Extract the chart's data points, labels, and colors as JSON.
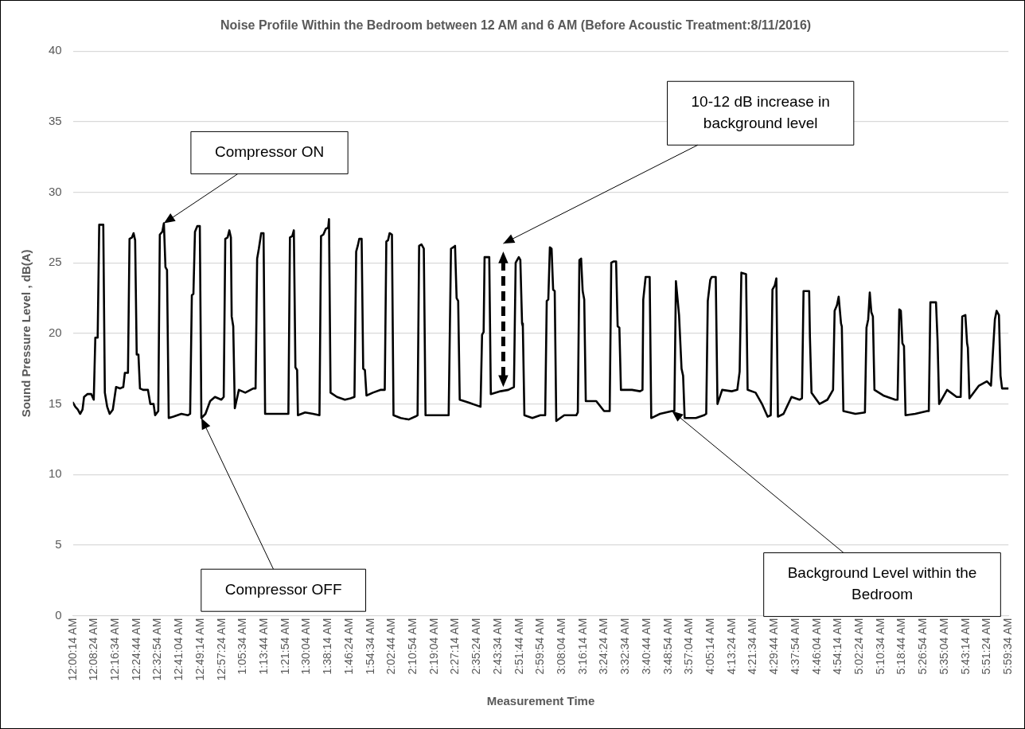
{
  "chart_data": {
    "type": "line",
    "title": "Noise Profile Within the Bedroom between 12 AM and 6 AM (Before Acoustic Treatment:8/11/2016)",
    "xlabel": "Measurement Time",
    "ylabel": "Sound Pressure Level , dB(A)",
    "series": [
      {
        "color": "#000000",
        "x": [
          0.004,
          0.019,
          0.035,
          0.05,
          0.065,
          0.075,
          0.096,
          0.121,
          0.137,
          0.147,
          0.162,
          0.172,
          0.198,
          0.208,
          0.223,
          0.239,
          0.259,
          0.28,
          0.305,
          0.326,
          0.336,
          0.356,
          0.366,
          0.382,
          0.392,
          0.402,
          0.412,
          0.423,
          0.433,
          0.453,
          0.484,
          0.499,
          0.52,
          0.53,
          0.55,
          0.56,
          0.576,
          0.586,
          0.596,
          0.606,
          0.617,
          0.647,
          0.698,
          0.739,
          0.754,
          0.765,
          0.775,
          0.785,
          0.8,
          0.816,
          0.826,
          0.852,
          0.882,
          0.913,
          0.954,
          0.969,
          0.979,
          0.994,
          1.005,
          1.015,
          1.02,
          1.03,
          1.04,
          1.066,
          1.107,
          1.158,
          1.173,
          1.183,
          1.194,
          1.209,
          1.224,
          1.234,
          1.286,
          1.362,
          1.383,
          1.393,
          1.408,
          1.418,
          1.428,
          1.439,
          1.444,
          1.49,
          1.541,
          1.582,
          1.592,
          1.607,
          1.622,
          1.638,
          1.643,
          1.653,
          1.694,
          1.745,
          1.781,
          1.806,
          1.817,
          1.827,
          1.837,
          1.852,
          1.862,
          1.873,
          1.883,
          1.924,
          1.975,
          2.0,
          2.01,
          2.021,
          2.031,
          2.046,
          2.056,
          2.102,
          2.153,
          2.194,
          2.21,
          2.22,
          2.235,
          2.25,
          2.261,
          2.332,
          2.409,
          2.424,
          2.439,
          2.45,
          2.46,
          2.47,
          2.48,
          2.536,
          2.588,
          2.613,
          2.623,
          2.633,
          2.639,
          2.669,
          2.679,
          2.741,
          2.791,
          2.827,
          2.838,
          2.848,
          2.858,
          2.868,
          2.879,
          2.884,
          2.894,
          2.945,
          2.996,
          3.027,
          3.037,
          3.047,
          3.057,
          3.068,
          3.078,
          3.088,
          3.098,
          3.149,
          3.226,
          3.236,
          3.246,
          3.257,
          3.267,
          3.277,
          3.287,
          3.354,
          3.404,
          3.44,
          3.45,
          3.466,
          3.481,
          3.491,
          3.502,
          3.512,
          3.583,
          3.634,
          3.65,
          3.655,
          3.67,
          3.696,
          3.706,
          3.762,
          3.839,
          3.854,
          3.864,
          3.874,
          3.884,
          3.9,
          3.91,
          3.92,
          3.992,
          4.043,
          4.058,
          4.068,
          4.084,
          4.094,
          4.119,
          4.13,
          4.16,
          4.221,
          4.257,
          4.272,
          4.283,
          4.313,
          4.323,
          4.374,
          4.415,
          4.451,
          4.471,
          4.482,
          4.497,
          4.507,
          4.517,
          4.553,
          4.604,
          4.655,
          4.671,
          4.681,
          4.717,
          4.722,
          4.732,
          4.783,
          4.834,
          4.87,
          4.88,
          4.895,
          4.906,
          4.921,
          4.926,
          4.936,
          5.013,
          5.074,
          5.084,
          5.095,
          5.105,
          5.115,
          5.125,
          5.135,
          5.192,
          5.268,
          5.283,
          5.294,
          5.304,
          5.314,
          5.324,
          5.334,
          5.396,
          5.472,
          5.483,
          5.493,
          5.529,
          5.539,
          5.549,
          5.6,
          5.661,
          5.687,
          5.697,
          5.717,
          5.728,
          5.733,
          5.743,
          5.804,
          5.855,
          5.881,
          5.891,
          5.906,
          5.917,
          5.932,
          5.942,
          5.952,
          5.992
        ],
        "values": [
          15.1,
          14.8,
          14.6,
          14.3,
          14.6,
          15.5,
          15.7,
          15.7,
          15.3,
          19.7,
          19.7,
          27.7,
          27.7,
          15.8,
          14.8,
          14.3,
          14.6,
          16.2,
          16.1,
          16.2,
          17.2,
          17.2,
          26.7,
          26.8,
          27.1,
          26.6,
          18.5,
          18.5,
          16.1,
          16.0,
          16.0,
          15.0,
          15.0,
          14.2,
          14.5,
          27.0,
          27.2,
          27.8,
          24.7,
          24.5,
          14.0,
          14.1,
          14.3,
          14.2,
          14.3,
          22.7,
          22.8,
          27.2,
          27.6,
          27.6,
          14.0,
          14.3,
          15.2,
          15.5,
          15.3,
          15.5,
          26.7,
          26.8,
          27.3,
          26.8,
          21.2,
          20.5,
          14.7,
          16.0,
          15.8,
          16.1,
          16.1,
          25.3,
          26.0,
          27.1,
          27.1,
          14.3,
          14.3,
          14.3,
          14.3,
          26.8,
          26.9,
          27.3,
          17.6,
          17.4,
          14.2,
          14.4,
          14.3,
          14.2,
          26.9,
          27.0,
          27.4,
          27.5,
          28.1,
          15.8,
          15.5,
          15.3,
          15.4,
          15.5,
          25.8,
          26.2,
          26.7,
          26.7,
          17.5,
          17.4,
          15.6,
          15.8,
          16.0,
          16.0,
          26.5,
          26.6,
          27.1,
          27.0,
          14.2,
          14.0,
          13.9,
          14.1,
          14.2,
          26.2,
          26.3,
          26.0,
          14.2,
          14.2,
          14.2,
          26.0,
          26.1,
          26.2,
          22.5,
          22.3,
          15.3,
          15.1,
          14.9,
          14.8,
          19.9,
          20.1,
          25.4,
          25.4,
          15.7,
          15.9,
          16.0,
          16.2,
          25.0,
          25.2,
          25.4,
          25.2,
          20.7,
          20.5,
          14.2,
          14.0,
          14.2,
          14.2,
          22.3,
          22.4,
          26.1,
          26.0,
          23.1,
          23.0,
          13.8,
          14.2,
          14.2,
          14.4,
          25.2,
          25.3,
          23.0,
          22.4,
          15.2,
          15.2,
          14.5,
          14.5,
          25.0,
          25.1,
          25.1,
          20.5,
          20.4,
          16.0,
          16.0,
          15.9,
          16.0,
          22.4,
          24.0,
          24.0,
          14.0,
          14.3,
          14.5,
          14.5,
          23.7,
          22.5,
          21.3,
          17.5,
          17.0,
          14.0,
          14.0,
          14.2,
          14.3,
          22.3,
          23.8,
          24.0,
          24.0,
          15.0,
          16.0,
          15.9,
          16.0,
          17.3,
          24.3,
          24.2,
          16.0,
          15.8,
          15.0,
          14.1,
          14.2,
          23.1,
          23.4,
          23.9,
          14.1,
          14.3,
          15.5,
          15.3,
          15.4,
          23.0,
          23.0,
          19.7,
          15.8,
          15.0,
          15.3,
          16.0,
          21.6,
          22.0,
          22.6,
          20.7,
          20.5,
          14.5,
          14.3,
          14.4,
          20.4,
          21.0,
          22.9,
          21.5,
          21.2,
          16.0,
          15.6,
          15.3,
          15.3,
          21.7,
          21.6,
          19.3,
          19.1,
          14.2,
          14.3,
          14.5,
          14.5,
          22.2,
          22.2,
          19.5,
          15.0,
          16.0,
          15.5,
          15.5,
          21.2,
          21.3,
          19.3,
          19.0,
          15.4,
          16.3,
          16.6,
          16.3,
          18.2,
          21.0,
          21.6,
          21.3,
          17.0,
          16.1,
          16.1
        ]
      }
    ],
    "xlim": [
      0.0039,
      5.9928
    ],
    "xticks": [
      {
        "value": 0.0039,
        "label": "12:00:14 AM"
      },
      {
        "value": 0.14,
        "label": "12:08:24 AM"
      },
      {
        "value": 0.2761,
        "label": "12:16:34 AM"
      },
      {
        "value": 0.4122,
        "label": "12:24:44 AM"
      },
      {
        "value": 0.5483,
        "label": "12:32:54 AM"
      },
      {
        "value": 0.6844,
        "label": "12:41:04 AM"
      },
      {
        "value": 0.8206,
        "label": "12:49:14 AM"
      },
      {
        "value": 0.9567,
        "label": "12:57:24 AM"
      },
      {
        "value": 1.0928,
        "label": "1:05:34 AM"
      },
      {
        "value": 1.2289,
        "label": "1:13:44 AM"
      },
      {
        "value": 1.365,
        "label": "1:21:54 AM"
      },
      {
        "value": 1.5011,
        "label": "1:30:04 AM"
      },
      {
        "value": 1.6372,
        "label": "1:38:14 AM"
      },
      {
        "value": 1.7733,
        "label": "1:46:24 AM"
      },
      {
        "value": 1.9094,
        "label": "1:54:34 AM"
      },
      {
        "value": 2.0456,
        "label": "2:02:44 AM"
      },
      {
        "value": 2.1817,
        "label": "2:10:54 AM"
      },
      {
        "value": 2.3178,
        "label": "2:19:04 AM"
      },
      {
        "value": 2.4539,
        "label": "2:27:14 AM"
      },
      {
        "value": 2.59,
        "label": "2:35:24 AM"
      },
      {
        "value": 2.7261,
        "label": "2:43:34 AM"
      },
      {
        "value": 2.8622,
        "label": "2:51:44 AM"
      },
      {
        "value": 2.9983,
        "label": "2:59:54 AM"
      },
      {
        "value": 3.1344,
        "label": "3:08:04 AM"
      },
      {
        "value": 3.2706,
        "label": "3:16:14 AM"
      },
      {
        "value": 3.4067,
        "label": "3:24:24 AM"
      },
      {
        "value": 3.5428,
        "label": "3:32:34 AM"
      },
      {
        "value": 3.6789,
        "label": "3:40:44 AM"
      },
      {
        "value": 3.815,
        "label": "3:48:54 AM"
      },
      {
        "value": 3.9511,
        "label": "3:57:04 AM"
      },
      {
        "value": 4.0872,
        "label": "4:05:14 AM"
      },
      {
        "value": 4.2233,
        "label": "4:13:24 AM"
      },
      {
        "value": 4.3594,
        "label": "4:21:34 AM"
      },
      {
        "value": 4.4956,
        "label": "4:29:44 AM"
      },
      {
        "value": 4.6317,
        "label": "4:37:54 AM"
      },
      {
        "value": 4.7678,
        "label": "4:46:04 AM"
      },
      {
        "value": 4.9039,
        "label": "4:54:14 AM"
      },
      {
        "value": 5.04,
        "label": "5:02:24 AM"
      },
      {
        "value": 5.1761,
        "label": "5:10:34 AM"
      },
      {
        "value": 5.3122,
        "label": "5:18:44 AM"
      },
      {
        "value": 5.4483,
        "label": "5:26:54 AM"
      },
      {
        "value": 5.5844,
        "label": "5:35:04 AM"
      },
      {
        "value": 5.7206,
        "label": "5:43:14 AM"
      },
      {
        "value": 5.8567,
        "label": "5:51:24 AM"
      },
      {
        "value": 5.9928,
        "label": "5:59:34 AM"
      }
    ],
    "ylim": [
      0,
      40
    ],
    "yticks": [
      0,
      5,
      10,
      15,
      20,
      25,
      30,
      35,
      40
    ],
    "grid": "y",
    "marker": "none",
    "line_style": "solid",
    "annotations": [
      {
        "text": "Compressor ON",
        "x": 0.586,
        "y": 27.8
      },
      {
        "text": "Compressor OFF",
        "x": 0.826,
        "y": 14.0
      },
      "10-12 dB increase in background level",
      {
        "text": "Background Level within the Bedroom",
        "x": 3.839,
        "y": 14.5
      }
    ]
  }
}
